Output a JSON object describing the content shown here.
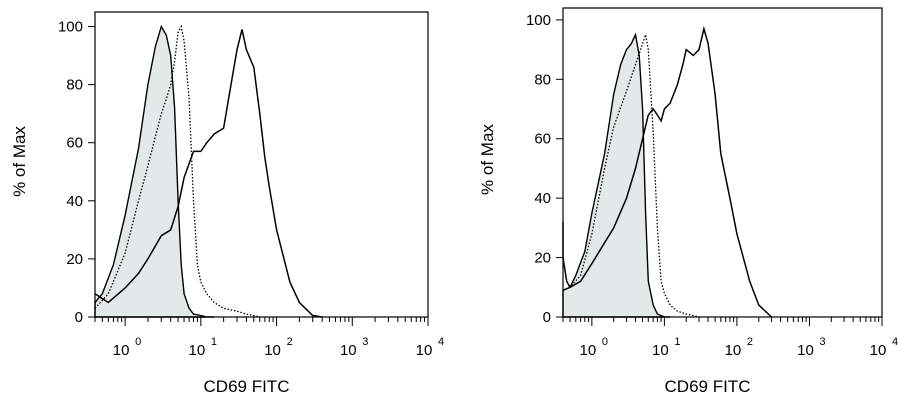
{
  "chart_data": [
    {
      "type": "line",
      "title": "",
      "xlabel": "CD69 FITC",
      "ylabel": "% of Max",
      "xscale": "log",
      "xlim": [
        0.4,
        10000
      ],
      "ylim": [
        0,
        105
      ],
      "ytick_labels": [
        "0",
        "20",
        "40",
        "60",
        "80",
        "100"
      ],
      "yticks": [
        0,
        20,
        40,
        60,
        80,
        100
      ],
      "xticks": [
        1,
        10,
        100,
        1000,
        10000
      ],
      "xtick_base": "10",
      "xtick_exponents": [
        "0",
        "1",
        "2",
        "3",
        "4"
      ],
      "series": [
        {
          "style": "shaded",
          "x": [
            0.4,
            0.5,
            0.7,
            1.0,
            1.5,
            2.0,
            2.5,
            3.0,
            3.5,
            4.0,
            4.5,
            5.0,
            5.5,
            6.0,
            7.0,
            8.0,
            10.0,
            12.0,
            15.0
          ],
          "y": [
            5,
            8,
            18,
            35,
            58,
            80,
            93,
            100,
            97,
            90,
            72,
            40,
            18,
            8,
            3,
            1,
            0.5,
            0,
            0
          ]
        },
        {
          "style": "dotted",
          "x": [
            0.4,
            0.6,
            1.0,
            1.5,
            2.0,
            2.5,
            3.0,
            3.5,
            4.0,
            4.5,
            5.0,
            5.5,
            6.0,
            7.0,
            8.0,
            9.0,
            10.0,
            12.0,
            15.0,
            20.0,
            30.0,
            40.0,
            60.0
          ],
          "y": [
            3,
            8,
            22,
            40,
            52,
            62,
            70,
            75,
            80,
            88,
            98,
            100,
            95,
            75,
            40,
            18,
            12,
            8,
            5,
            3,
            2,
            1,
            0
          ]
        },
        {
          "style": "solid",
          "x": [
            0.4,
            0.6,
            1.0,
            1.5,
            2.0,
            3.0,
            4.0,
            5.0,
            6.0,
            8.0,
            10.0,
            12.0,
            15.0,
            20.0,
            25.0,
            30.0,
            35.0,
            40.0,
            50.0,
            60.0,
            70.0,
            80.0,
            100.0,
            150.0,
            200.0,
            300.0,
            400.0
          ],
          "y": [
            8,
            5,
            10,
            15,
            20,
            28,
            30,
            38,
            48,
            57,
            57,
            60,
            63,
            65,
            80,
            92,
            99,
            92,
            86,
            70,
            55,
            45,
            30,
            12,
            5,
            0.5,
            0
          ]
        }
      ]
    },
    {
      "type": "line",
      "title": "",
      "xlabel": "CD69 FITC",
      "ylabel": "% of Max",
      "xscale": "log",
      "xlim": [
        0.4,
        10000
      ],
      "ylim": [
        0,
        104
      ],
      "ytick_labels": [
        "0",
        "20",
        "40",
        "60",
        "80",
        "100"
      ],
      "yticks": [
        0,
        20,
        40,
        60,
        80,
        100
      ],
      "xticks": [
        1,
        10,
        100,
        1000,
        10000
      ],
      "xtick_base": "10",
      "xtick_exponents": [
        "0",
        "1",
        "2",
        "3",
        "4"
      ],
      "series": [
        {
          "style": "shaded",
          "x": [
            0.4,
            0.5,
            0.6,
            0.8,
            1.0,
            1.5,
            2.0,
            2.5,
            3.0,
            3.5,
            4.0,
            4.5,
            5.0,
            5.5,
            6.0,
            7.0,
            8.0,
            10.0,
            12.0
          ],
          "y": [
            9,
            10,
            14,
            22,
            35,
            55,
            75,
            85,
            90,
            92,
            95,
            88,
            70,
            35,
            12,
            4,
            1,
            0,
            0
          ]
        },
        {
          "style": "dotted",
          "x": [
            0.4,
            0.5,
            0.7,
            1.0,
            1.5,
            2.0,
            3.0,
            4.0,
            5.0,
            5.5,
            6.0,
            7.0,
            8.0,
            9.0,
            10.0,
            12.0,
            15.0,
            20.0,
            30.0
          ],
          "y": [
            9,
            10,
            14,
            28,
            50,
            64,
            76,
            85,
            92,
            95,
            90,
            62,
            30,
            12,
            8,
            4,
            2,
            1,
            0
          ]
        },
        {
          "style": "solid",
          "x": [
            0.35,
            0.4,
            0.45,
            0.5,
            0.7,
            1.0,
            1.5,
            2.0,
            3.0,
            4.0,
            5.0,
            6.0,
            7.0,
            8.0,
            9.0,
            10.0,
            12.0,
            15.0,
            18.0,
            20.0,
            25.0,
            30.0,
            35.0,
            40.0,
            50.0,
            60.0,
            80.0,
            100.0,
            150.0,
            200.0,
            300.0
          ],
          "y": [
            32,
            20,
            12,
            10,
            12,
            18,
            25,
            30,
            40,
            50,
            60,
            68,
            70,
            68,
            66,
            70,
            72,
            78,
            85,
            90,
            88,
            90,
            97,
            92,
            75,
            55,
            40,
            28,
            12,
            4,
            0
          ]
        }
      ]
    }
  ]
}
